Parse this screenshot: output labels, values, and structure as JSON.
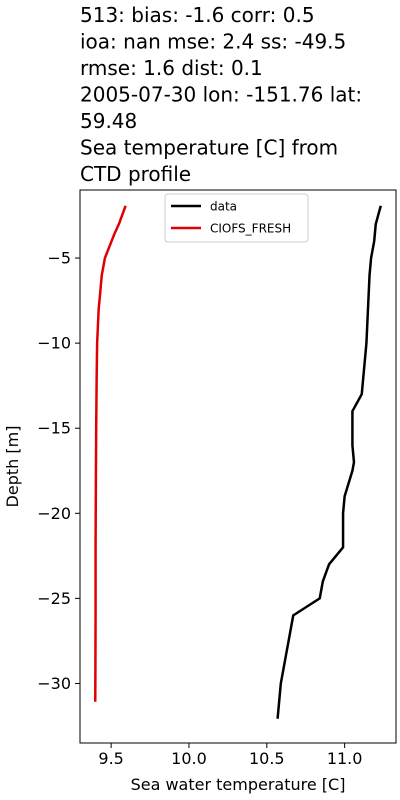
{
  "chart_data": {
    "type": "line",
    "title_lines": [
      "513: bias: -1.6  corr: 0.5",
      "ioa: nan  mse: 2.4  ss: -49.5",
      "rmse: 1.6  dist: 0.1",
      "2005-07-30 lon: -151.76 lat:",
      "59.48",
      "Sea temperature [C] from",
      "CTD profile"
    ],
    "xlabel": "Sea water temperature [C]",
    "ylabel": "Depth [m]",
    "xlim": [
      9.3,
      11.33
    ],
    "ylim": [
      -33.5,
      -1.0
    ],
    "x_ticks": [
      9.5,
      10.0,
      10.5,
      11.0
    ],
    "x_tick_labels": [
      "9.5",
      "10.0",
      "10.5",
      "11.0"
    ],
    "y_ticks": [
      -5,
      -10,
      -15,
      -20,
      -25,
      -30
    ],
    "y_tick_labels": [
      "−5",
      "−10",
      "−15",
      "−20",
      "−25",
      "−30"
    ],
    "legend_position": "upper-center",
    "grid": false,
    "series": [
      {
        "name": "data",
        "color": "#000000",
        "points": [
          [
            11.23,
            -2
          ],
          [
            11.2,
            -3
          ],
          [
            11.19,
            -4
          ],
          [
            11.17,
            -5
          ],
          [
            11.16,
            -6
          ],
          [
            11.15,
            -8
          ],
          [
            11.14,
            -10
          ],
          [
            11.13,
            -11
          ],
          [
            11.12,
            -12
          ],
          [
            11.11,
            -13
          ],
          [
            11.05,
            -14
          ],
          [
            11.05,
            -15
          ],
          [
            11.05,
            -16
          ],
          [
            11.06,
            -17
          ],
          [
            11.05,
            -17.5
          ],
          [
            11.0,
            -19
          ],
          [
            10.99,
            -20
          ],
          [
            10.99,
            -21
          ],
          [
            10.99,
            -22
          ],
          [
            10.9,
            -23
          ],
          [
            10.86,
            -24
          ],
          [
            10.84,
            -25
          ],
          [
            10.67,
            -26
          ],
          [
            10.65,
            -27
          ],
          [
            10.63,
            -28
          ],
          [
            10.61,
            -29
          ],
          [
            10.59,
            -30
          ],
          [
            10.58,
            -31
          ],
          [
            10.57,
            -32
          ]
        ]
      },
      {
        "name": "CIOFS_FRESH",
        "color": "#e00000",
        "points": [
          [
            9.59,
            -2
          ],
          [
            9.57,
            -2.5
          ],
          [
            9.55,
            -3
          ],
          [
            9.52,
            -3.6
          ],
          [
            9.49,
            -4.3
          ],
          [
            9.46,
            -5
          ],
          [
            9.44,
            -6
          ],
          [
            9.43,
            -7
          ],
          [
            9.42,
            -8
          ],
          [
            9.415,
            -9
          ],
          [
            9.41,
            -10
          ],
          [
            9.407,
            -12
          ],
          [
            9.404,
            -15
          ],
          [
            9.402,
            -18
          ],
          [
            9.4,
            -22
          ],
          [
            9.4,
            -26
          ],
          [
            9.399,
            -29
          ],
          [
            9.398,
            -31
          ]
        ]
      }
    ]
  }
}
